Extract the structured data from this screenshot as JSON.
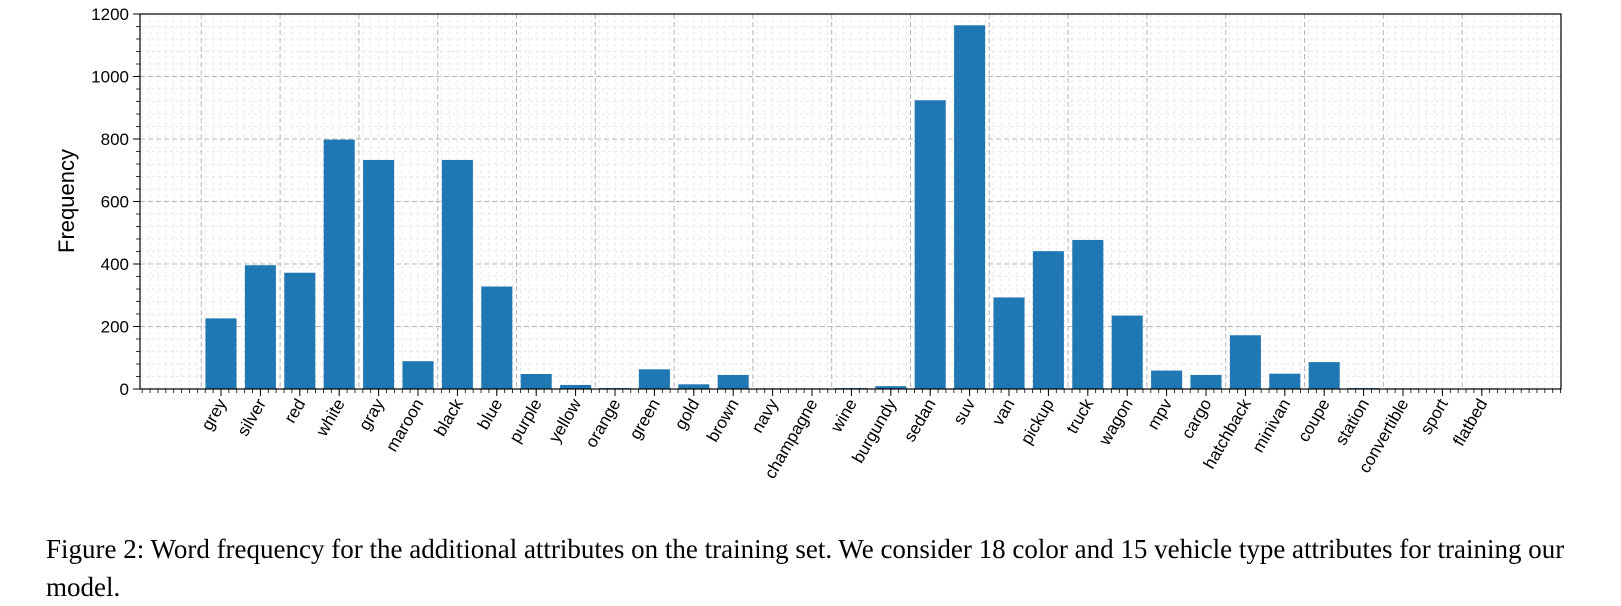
{
  "chart_data": {
    "type": "bar",
    "xlabel": "",
    "ylabel": "Frequency",
    "ylim": [
      0,
      1200
    ],
    "yticks": [
      0,
      200,
      400,
      600,
      800,
      1000,
      1200
    ],
    "grid": true,
    "bar_color": "#1f77b4",
    "categories": [
      "grey",
      "silver",
      "red",
      "white",
      "gray",
      "maroon",
      "black",
      "blue",
      "purple",
      "yellow",
      "orange",
      "green",
      "gold",
      "brown",
      "navy",
      "champagne",
      "wine",
      "burgundy",
      "sedan",
      "suv",
      "van",
      "pickup",
      "truck",
      "wagon",
      "mpv",
      "cargo",
      "hatchback",
      "minivan",
      "coupe",
      "station",
      "convertible",
      "sport",
      "flatbed"
    ],
    "values": [
      226,
      396,
      372,
      798,
      733,
      89,
      733,
      328,
      48,
      13,
      3,
      63,
      15,
      45,
      2,
      2,
      3,
      9,
      924,
      1164,
      293,
      441,
      477,
      235,
      59,
      45,
      172,
      49,
      86,
      3,
      2,
      1,
      2
    ]
  },
  "caption": {
    "text": "Figure 2: Word frequency for the additional attributes on the training set. We consider 18 color and 15 vehicle type attributes for training our model."
  }
}
